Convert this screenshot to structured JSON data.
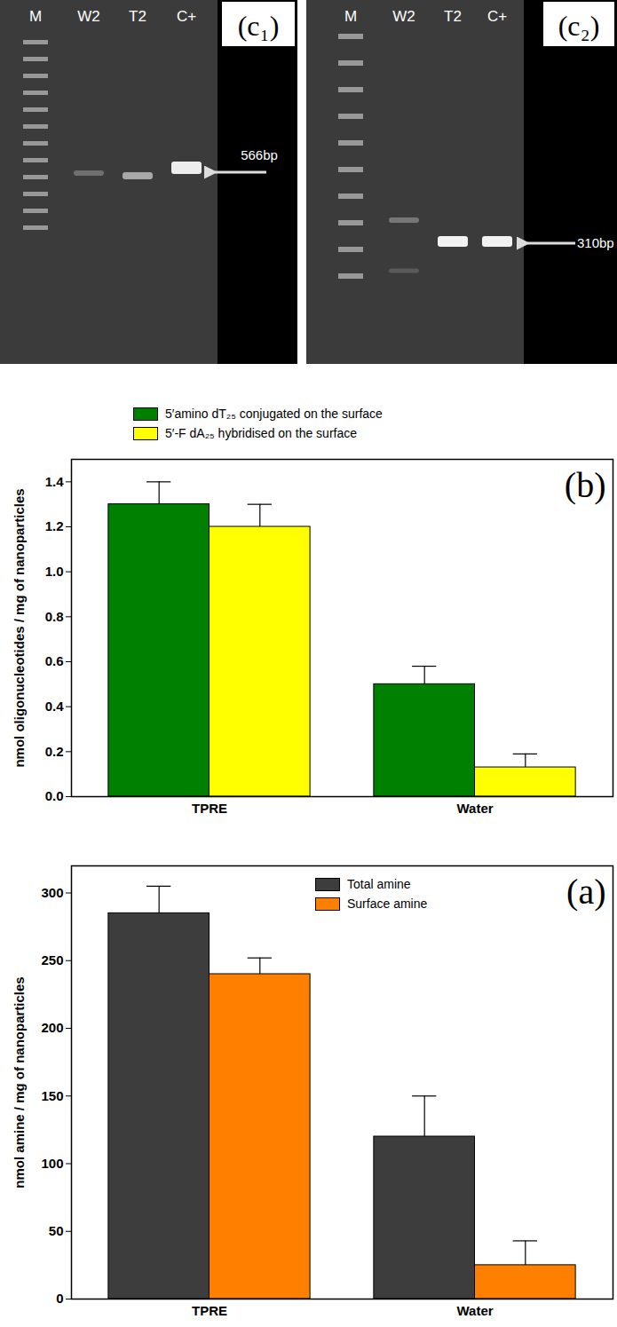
{
  "gel_panels": [
    {
      "panel_label": "(c₁)",
      "lanes": [
        "M",
        "W2",
        "T2",
        "C+"
      ],
      "marker_label": "566bp"
    },
    {
      "panel_label": "(c₂)",
      "lanes": [
        "M",
        "W2",
        "T2",
        "C+"
      ],
      "marker_label": "310bp"
    }
  ],
  "chart_data": [
    {
      "type": "bar",
      "annotation": "(b)",
      "categories": [
        "TPRE",
        "Water"
      ],
      "y_label": "nmol oligonucleotides / mg of nanoparticles",
      "ylim": [
        0,
        1.5
      ],
      "yticks": [
        {
          "value": 0,
          "label": "0.0"
        },
        0.2,
        0.4,
        0.6,
        0.8,
        {
          "value": 1,
          "label": "1.0"
        },
        1.2,
        1.4
      ],
      "legend": "top",
      "series": [
        {
          "name": "5′amino dT₂₅ conjugated on the surface",
          "color": "#008000",
          "values": [
            1.3,
            0.5
          ],
          "errors": [
            0.1,
            0.08
          ]
        },
        {
          "name": "5′-F dA₂₅ hybridised on the surface",
          "color": "#ffff00",
          "values": [
            1.2,
            0.13
          ],
          "errors": [
            0.1,
            0.06
          ]
        }
      ]
    },
    {
      "type": "bar",
      "annotation": "(a)",
      "categories": [
        "TPRE",
        "Water"
      ],
      "y_label": "nmol amine / mg of nanoparticles",
      "ylim": [
        0,
        320
      ],
      "yticks": [
        0,
        50,
        100,
        150,
        200,
        250,
        300
      ],
      "legend": "top",
      "series": [
        {
          "name": "Total amine",
          "color": "#3d3d3d",
          "values": [
            285,
            120
          ],
          "errors": [
            20,
            30
          ]
        },
        {
          "name": "Surface amine",
          "color": "#ff8000",
          "values": [
            240,
            25
          ],
          "errors": [
            12,
            18
          ]
        }
      ]
    }
  ]
}
